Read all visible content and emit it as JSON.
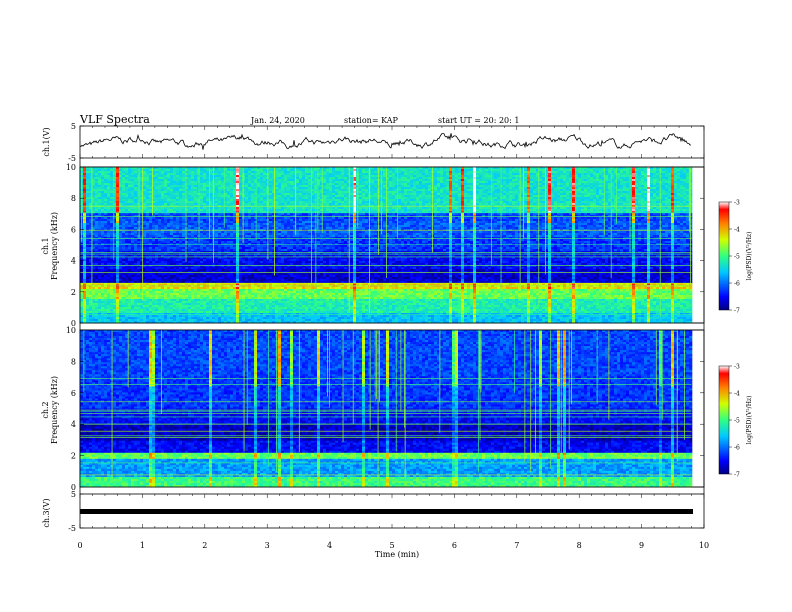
{
  "header": {
    "title": "VLF Spectra",
    "date": "Jan. 24, 2020",
    "station": "station= KAP",
    "start": "start  UT =   20: 20: 1"
  },
  "colorbar": {
    "label": "log(PSD)(V²/Hz)",
    "ticks": [
      "-3",
      "-4",
      "-5",
      "-6",
      "-7"
    ]
  },
  "chart_data": [
    {
      "type": "line",
      "name": "ch1-waveform",
      "ylabel": "ch.1(V)",
      "ylim": [
        -5,
        5
      ],
      "yticks": [
        "5",
        "-5"
      ],
      "xlim": [
        0,
        10
      ],
      "description_values": "noisy waveform oscillating roughly between -2 and 2 V over 0 to 9.8 min"
    },
    {
      "type": "heatmap",
      "name": "ch1-spectrogram",
      "ylabel": "ch.1\nFrequency (kHz)",
      "ylim": [
        0,
        10
      ],
      "yticks": [
        "0",
        "2",
        "4",
        "6",
        "8",
        "10"
      ],
      "xlim": [
        0,
        10
      ],
      "data_end_min": 9.8,
      "zlim": [
        -7,
        -3
      ]
    },
    {
      "type": "heatmap",
      "name": "ch2-spectrogram",
      "ylabel": "ch.2\nFrequency (kHz)",
      "ylim": [
        0,
        10
      ],
      "yticks": [
        "0",
        "2",
        "4",
        "6",
        "8",
        "10"
      ],
      "xlim": [
        0,
        10
      ],
      "data_end_min": 9.8,
      "zlim": [
        -7,
        -3
      ]
    },
    {
      "type": "line",
      "name": "ch3-waveform",
      "ylabel": "ch.3(V)",
      "ylim": [
        -5,
        5
      ],
      "yticks": [
        "5",
        "-5"
      ],
      "values_constant": -1,
      "xlim": [
        0,
        10
      ]
    }
  ],
  "xaxis": {
    "label": "Time (min)",
    "ticks": [
      "0",
      "1",
      "2",
      "3",
      "4",
      "5",
      "6",
      "7",
      "8",
      "9",
      "10"
    ]
  }
}
